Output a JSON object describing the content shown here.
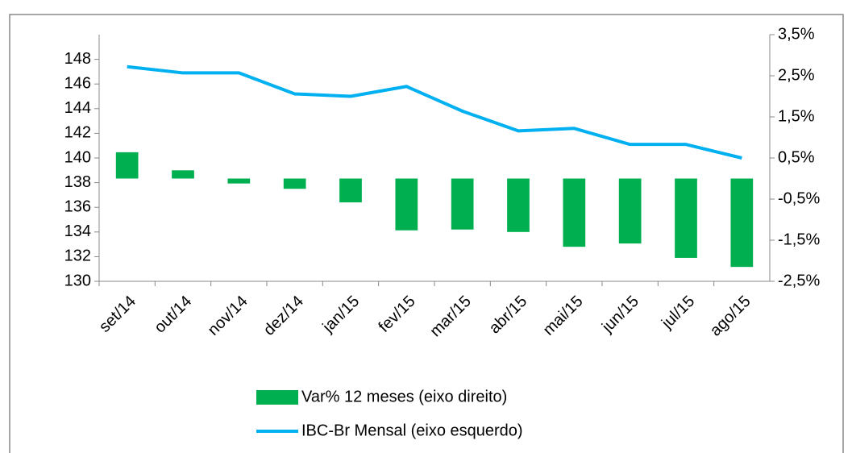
{
  "chart_data": {
    "type": "bar",
    "categories": [
      "set/14",
      "out/14",
      "nov/14",
      "dez/14",
      "jan/15",
      "fev/15",
      "mar/15",
      "abr/15",
      "mai/15",
      "jun/15",
      "jul/15",
      "ago/15"
    ],
    "series": [
      {
        "name": "Var% 12 meses (eixo direito)",
        "type": "bar",
        "axis": "y2",
        "color": "#00b050",
        "values": [
          0.64,
          0.2,
          -0.12,
          -0.25,
          -0.58,
          -1.26,
          -1.24,
          -1.3,
          -1.66,
          -1.58,
          -1.93,
          -2.15
        ]
      },
      {
        "name": "IBC-Br Mensal (eixo esquerdo)",
        "type": "line",
        "axis": "y",
        "color": "#00b0f0",
        "values": [
          147.4,
          146.9,
          146.9,
          145.2,
          145.0,
          145.8,
          143.8,
          142.2,
          142.4,
          141.1,
          141.1,
          140.0
        ]
      }
    ],
    "ylim": [
      130,
      150
    ],
    "yticks": [
      130,
      132,
      134,
      136,
      138,
      140,
      142,
      144,
      146,
      148
    ],
    "y2lim": [
      -2.5,
      3.5
    ],
    "y2ticks": [
      {
        "value": -2.5,
        "label": "-2,5%"
      },
      {
        "value": -1.5,
        "label": "-1,5%"
      },
      {
        "value": -0.5,
        "label": "-0,5%"
      },
      {
        "value": 0.5,
        "label": "0,5%"
      },
      {
        "value": 1.5,
        "label": "1,5%"
      },
      {
        "value": 2.5,
        "label": "2,5%"
      },
      {
        "value": 3.5,
        "label": "3,5%"
      }
    ],
    "legend": "bottom"
  }
}
